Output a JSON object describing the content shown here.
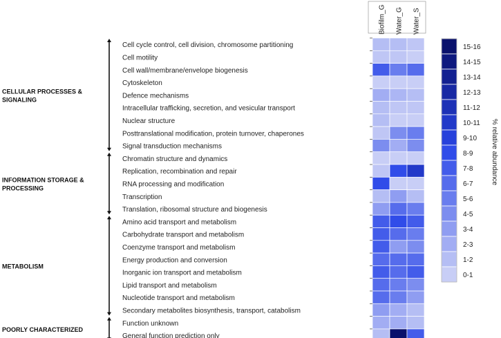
{
  "chart_data": {
    "type": "heatmap",
    "title": "",
    "columns": [
      "Biofilm_G",
      "Water_G",
      "Water_S"
    ],
    "groups": [
      {
        "name": "CELLULAR PROCESSES &",
        "name2": "SIGNALING",
        "rows": [
          0,
          8
        ]
      },
      {
        "name": "INFORMATION STORAGE &",
        "name2": "PROCESSING",
        "rows": [
          9,
          13
        ]
      },
      {
        "name": "METABOLISM",
        "name2": "",
        "rows": [
          14,
          21
        ]
      },
      {
        "name": "POORLY CHARACTERIZED",
        "name2": "",
        "rows": [
          22,
          23
        ]
      }
    ],
    "rows": [
      "Cell cycle control, cell division, chromosome partitioning",
      "Cell motility",
      "Cell wall/membrane/envelope biogenesis",
      "Cytoskeleton",
      "Defence mechanisms",
      "Intracellular trafficking, secretion, and vesicular transport",
      "Nuclear structure",
      "Posttranslational modification, protein turnover, chaperones",
      "Signal transduction mechanisms",
      "Chromatin structure and dynamics",
      "Replication, recombination and repair",
      "RNA processing and modification",
      "Transcription",
      "Translation, ribosomal structure and biogenesis",
      "Amino acid transport and metabolism",
      "Carbohydrate transport and metabolism",
      "Coenzyme transport and metabolism",
      "Energy production and conversion",
      "Inorganic ion transport and metabolism",
      "Lipid transport and metabolism",
      "Nucleotide transport and metabolism",
      "Secondary metabolites biosynthesis, transport, catabolism",
      "Function unknown",
      "General function prediction only"
    ],
    "values": [
      [
        1.5,
        1.5,
        1.0
      ],
      [
        1.0,
        1.0,
        0.5
      ],
      [
        7.5,
        5.5,
        6.5
      ],
      [
        0.5,
        0.5,
        0.5
      ],
      [
        2.5,
        2.0,
        1.5
      ],
      [
        1.5,
        1.0,
        1.0
      ],
      [
        1.5,
        0.5,
        0.5
      ],
      [
        1.0,
        4.5,
        5.5
      ],
      [
        4.5,
        2.5,
        4.5
      ],
      [
        0.5,
        0.5,
        0.5
      ],
      [
        1.0,
        8.5,
        10.5
      ],
      [
        8.5,
        0.5,
        0.5
      ],
      [
        1.5,
        3.5,
        1.5
      ],
      [
        3.5,
        6.5,
        5.5
      ],
      [
        7.5,
        8.5,
        7.5
      ],
      [
        7.5,
        6.5,
        5.5
      ],
      [
        7.5,
        3.5,
        4.5
      ],
      [
        6.5,
        6.5,
        6.5
      ],
      [
        7.5,
        6.5,
        7.5
      ],
      [
        6.5,
        5.5,
        4.5
      ],
      [
        6.5,
        5.5,
        3.5
      ],
      [
        3.5,
        2.5,
        1.5
      ],
      [
        2.5,
        2.5,
        1.5
      ],
      [
        1.5,
        15.5,
        7.5
      ]
    ],
    "legend": {
      "title": "% relative abundance",
      "bins": [
        "0-1",
        "1-2",
        "2-3",
        "3-4",
        "4-5",
        "5-6",
        "6-7",
        "7-8",
        "8-9",
        "9-10",
        "10-11",
        "11-12",
        "12-13",
        "13-14",
        "14-15",
        "15-16"
      ],
      "color_low": "#d2d6f7",
      "color_high": "#070d63",
      "color_mid": "#2a47e8"
    }
  }
}
